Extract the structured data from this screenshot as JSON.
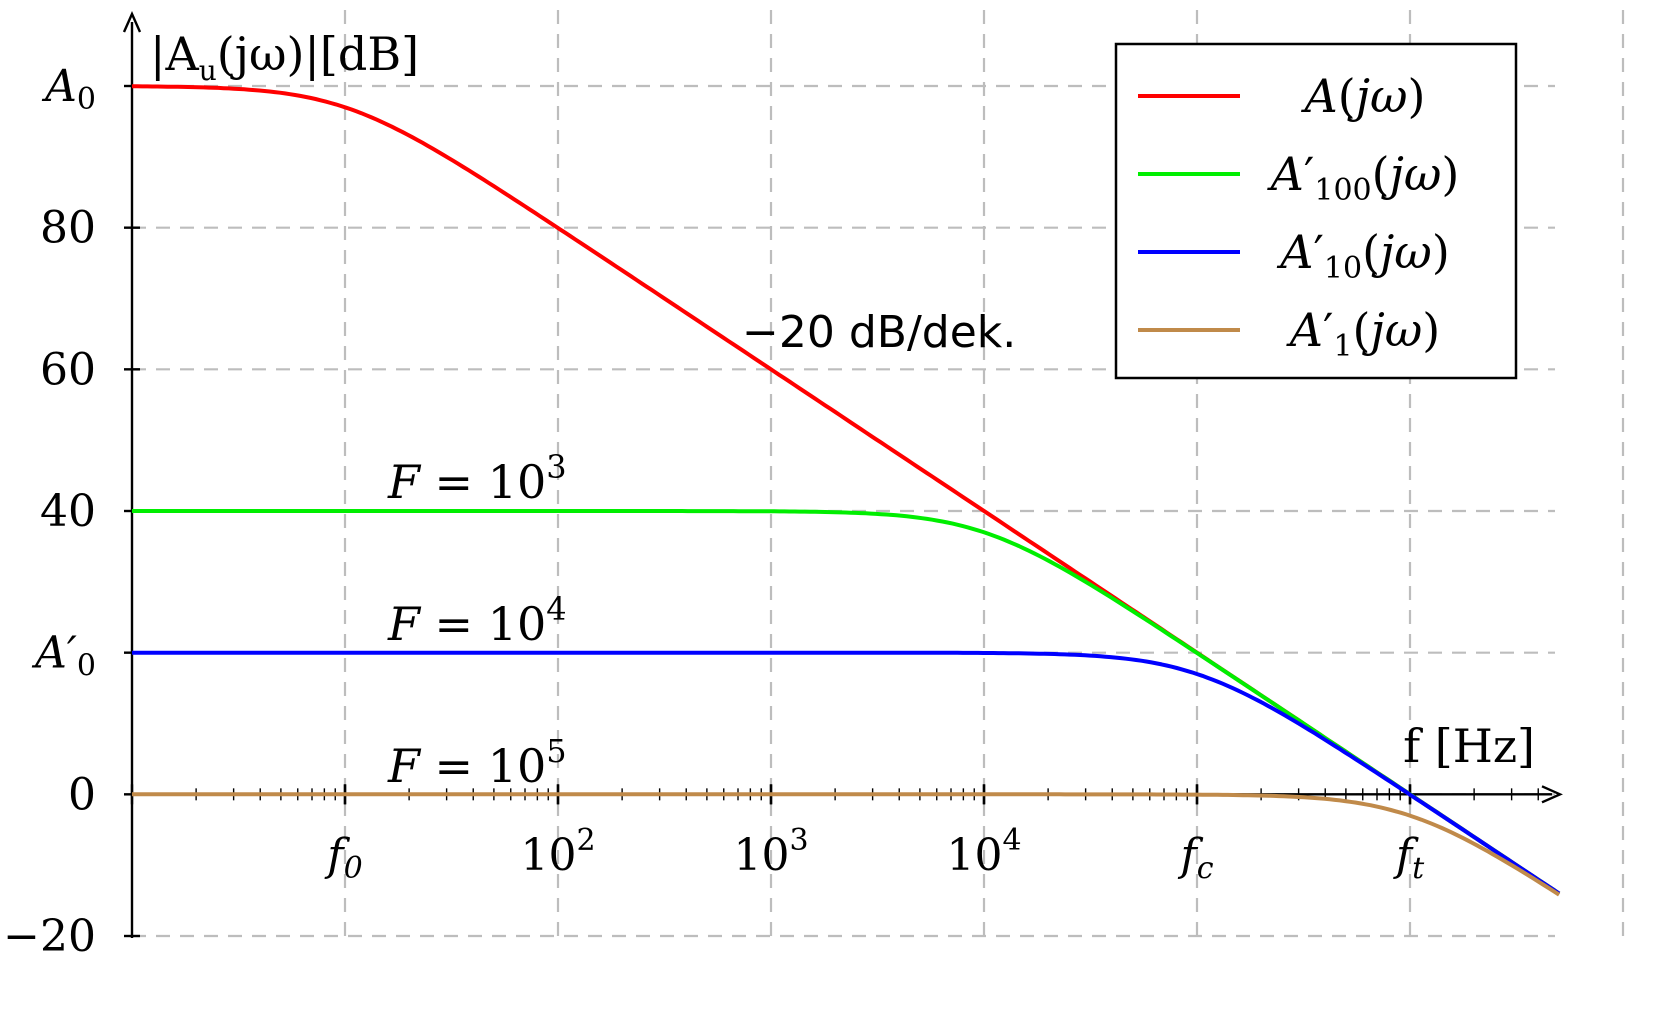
{
  "chart_data": {
    "type": "line",
    "ylabel": "|A",
    "ylabel_sub": "u",
    "ylabel_rest": "(jω)|[dB]",
    "xlabel": "f  [Hz]",
    "x_scale": "log",
    "xlim_decades": [
      0,
      7
    ],
    "ylim": [
      -20,
      100
    ],
    "grid": true,
    "legend_position": "top-right",
    "y_ticks": [
      {
        "value": 100,
        "label": "A",
        "sub": "0",
        "color": "#ff0000"
      },
      {
        "value": 80,
        "label": "80"
      },
      {
        "value": 60,
        "label": "60"
      },
      {
        "value": 40,
        "label": "40"
      },
      {
        "value": 20,
        "label": "A′",
        "sub": "0",
        "color": "#0000ff"
      },
      {
        "value": 0,
        "label": "0"
      },
      {
        "value": -20,
        "label": "−20"
      }
    ],
    "x_ticks": [
      {
        "decade": 1,
        "base": "f",
        "sub": "0",
        "color": "#ff0000"
      },
      {
        "decade": 2,
        "base": "10",
        "sup": "2"
      },
      {
        "decade": 3,
        "base": "10",
        "sup": "3"
      },
      {
        "decade": 4,
        "base": "10",
        "sup": "4"
      },
      {
        "decade": 5,
        "base": "f",
        "sub": "c",
        "color": "#0000ff"
      },
      {
        "decade": 6,
        "base": "f",
        "sub": "t",
        "color": "#ff0000"
      }
    ],
    "series": [
      {
        "name": "A(jω)",
        "prime": false,
        "sub": "",
        "color": "#ff0000",
        "dc_gain_db": 100,
        "pole_decade": 1
      },
      {
        "name": "A′100(jω)",
        "prime": true,
        "sub": "100",
        "color": "#00ee00",
        "dc_gain_db": 40,
        "pole_decade": 4
      },
      {
        "name": "A′10(jω)",
        "prime": true,
        "sub": "10",
        "color": "#0000ff",
        "dc_gain_db": 20,
        "pole_decade": 5
      },
      {
        "name": "A′1(jω)",
        "prime": true,
        "sub": "1",
        "color": "#c08a4a",
        "dc_gain_db": 0,
        "pole_decade": 6
      }
    ],
    "annotations": [
      {
        "id": "slope",
        "text": "−20 dB/dek."
      },
      {
        "id": "f1000",
        "text": "F = 10",
        "sup": "3"
      },
      {
        "id": "f10000",
        "text": "F = 10",
        "sup": "4"
      },
      {
        "id": "f100000",
        "text": "F = 10",
        "sup": "5"
      }
    ]
  }
}
